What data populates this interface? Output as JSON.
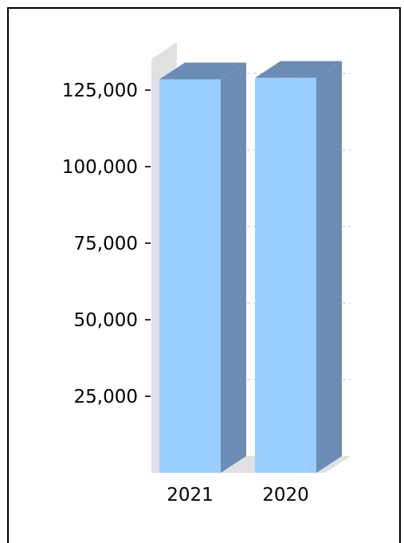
{
  "chart_data": {
    "type": "bar",
    "categories": [
      "2021",
      "2020"
    ],
    "values": [
      128500,
      129000
    ],
    "title": "",
    "xlabel": "",
    "ylabel": "",
    "ylim": [
      0,
      125000
    ],
    "yticks": [
      25000,
      50000,
      75000,
      100000,
      125000
    ],
    "ytick_labels": [
      "25,000",
      "50,000",
      "75,000",
      "100,000",
      "125,000"
    ],
    "grid": true,
    "legend": "none",
    "style": "3d",
    "colors": {
      "bar_front": "#99ccff",
      "bar_side": "#6b8cb4",
      "bar_top": "#6b8cb4",
      "wall": "#e0e0e0",
      "grid": "#c0c0c0"
    }
  }
}
